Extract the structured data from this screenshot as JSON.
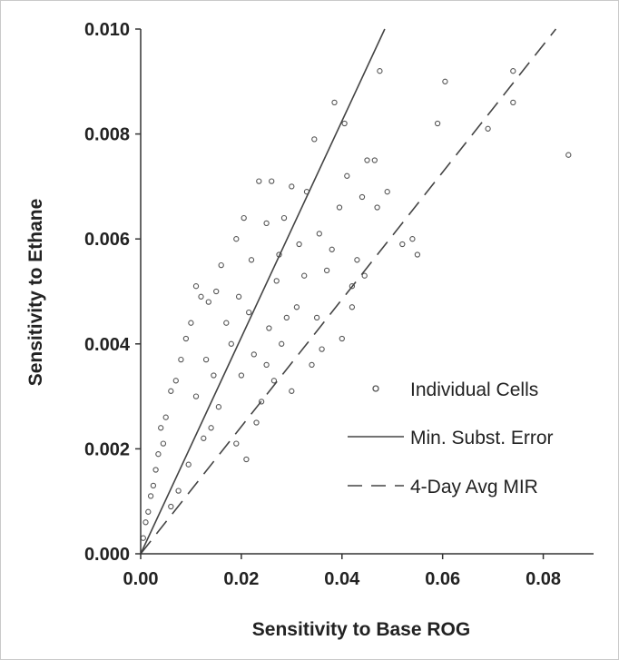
{
  "chart_data": {
    "type": "scatter",
    "title": "",
    "xlabel": "Sensitivity to Base ROG",
    "ylabel": "Sensitivity to Ethane",
    "xlim": [
      0,
      0.09
    ],
    "ylim": [
      0,
      0.01
    ],
    "x_ticks": [
      "0.00",
      "0.02",
      "0.04",
      "0.06",
      "0.08"
    ],
    "y_ticks": [
      "0.000",
      "0.002",
      "0.004",
      "0.006",
      "0.008",
      "0.010"
    ],
    "grid": false,
    "legend_position": "lower-right",
    "series": [
      {
        "name": "Individual Cells",
        "style": "open-circle",
        "points": [
          [
            0.0475,
            0.0092
          ],
          [
            0.0385,
            0.0086
          ],
          [
            0.0405,
            0.0082
          ],
          [
            0.0605,
            0.009
          ],
          [
            0.059,
            0.0082
          ],
          [
            0.074,
            0.0092
          ],
          [
            0.074,
            0.0086
          ],
          [
            0.069,
            0.0081
          ],
          [
            0.085,
            0.0076
          ],
          [
            0.0345,
            0.0079
          ],
          [
            0.0465,
            0.0075
          ],
          [
            0.045,
            0.0075
          ],
          [
            0.041,
            0.0072
          ],
          [
            0.049,
            0.0069
          ],
          [
            0.047,
            0.0066
          ],
          [
            0.044,
            0.0068
          ],
          [
            0.054,
            0.006
          ],
          [
            0.052,
            0.0059
          ],
          [
            0.055,
            0.0057
          ],
          [
            0.0395,
            0.0066
          ],
          [
            0.043,
            0.0056
          ],
          [
            0.0445,
            0.0053
          ],
          [
            0.042,
            0.0051
          ],
          [
            0.04,
            0.0041
          ],
          [
            0.037,
            0.0054
          ],
          [
            0.035,
            0.0045
          ],
          [
            0.036,
            0.0039
          ],
          [
            0.042,
            0.0047
          ],
          [
            0.033,
            0.0069
          ],
          [
            0.03,
            0.007
          ],
          [
            0.0285,
            0.0064
          ],
          [
            0.026,
            0.0071
          ],
          [
            0.025,
            0.0063
          ],
          [
            0.0235,
            0.0071
          ],
          [
            0.0205,
            0.0064
          ],
          [
            0.019,
            0.006
          ],
          [
            0.022,
            0.0056
          ],
          [
            0.027,
            0.0052
          ],
          [
            0.029,
            0.0045
          ],
          [
            0.0255,
            0.0043
          ],
          [
            0.031,
            0.0047
          ],
          [
            0.034,
            0.0036
          ],
          [
            0.03,
            0.0031
          ],
          [
            0.0265,
            0.0033
          ],
          [
            0.024,
            0.0029
          ],
          [
            0.021,
            0.0018
          ],
          [
            0.019,
            0.0021
          ],
          [
            0.017,
            0.0044
          ],
          [
            0.015,
            0.005
          ],
          [
            0.016,
            0.0055
          ],
          [
            0.0135,
            0.0048
          ],
          [
            0.012,
            0.0049
          ],
          [
            0.011,
            0.0051
          ],
          [
            0.01,
            0.0044
          ],
          [
            0.009,
            0.0041
          ],
          [
            0.008,
            0.0037
          ],
          [
            0.007,
            0.0033
          ],
          [
            0.006,
            0.0031
          ],
          [
            0.005,
            0.0026
          ],
          [
            0.0045,
            0.0021
          ],
          [
            0.004,
            0.0024
          ],
          [
            0.0035,
            0.0019
          ],
          [
            0.003,
            0.0016
          ],
          [
            0.0025,
            0.0013
          ],
          [
            0.002,
            0.0011
          ],
          [
            0.0015,
            0.0008
          ],
          [
            0.001,
            0.0006
          ],
          [
            0.0005,
            0.0003
          ],
          [
            0.011,
            0.003
          ],
          [
            0.013,
            0.0037
          ],
          [
            0.0145,
            0.0034
          ],
          [
            0.0155,
            0.0028
          ],
          [
            0.014,
            0.0024
          ],
          [
            0.0125,
            0.0022
          ],
          [
            0.0095,
            0.0017
          ],
          [
            0.0075,
            0.0012
          ],
          [
            0.006,
            0.0009
          ],
          [
            0.018,
            0.004
          ],
          [
            0.02,
            0.0034
          ],
          [
            0.0225,
            0.0038
          ],
          [
            0.0215,
            0.0046
          ],
          [
            0.0195,
            0.0049
          ],
          [
            0.0275,
            0.0057
          ],
          [
            0.0315,
            0.0059
          ],
          [
            0.0355,
            0.0061
          ],
          [
            0.038,
            0.0058
          ],
          [
            0.0325,
            0.0053
          ],
          [
            0.028,
            0.004
          ],
          [
            0.025,
            0.0036
          ],
          [
            0.023,
            0.0025
          ]
        ]
      },
      {
        "name": "Min. Subst. Error",
        "style": "solid-line",
        "points": [
          [
            0,
            0
          ],
          [
            0.0485,
            0.01
          ]
        ]
      },
      {
        "name": "4-Day Avg MIR",
        "style": "dashed-line",
        "points": [
          [
            0,
            0
          ],
          [
            0.0825,
            0.01
          ]
        ]
      }
    ]
  }
}
